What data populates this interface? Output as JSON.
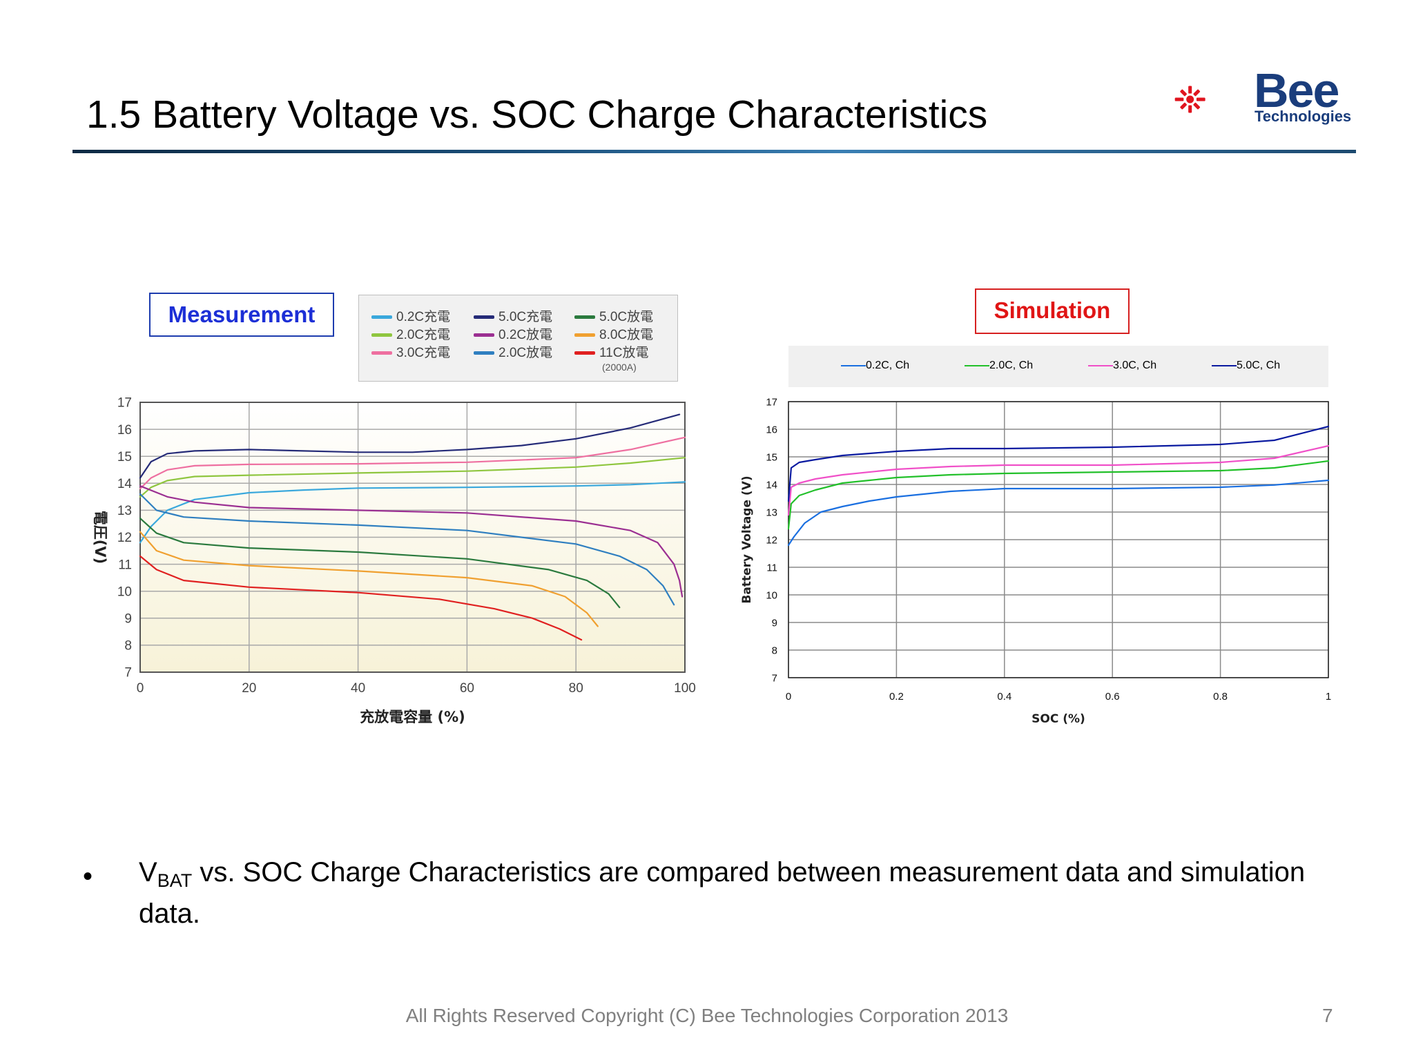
{
  "slide": {
    "title": "1.5 Battery Voltage vs. SOC Charge Characteristics",
    "logo_brand": "Bee",
    "logo_sub": "Technologies",
    "bullet_main": "V",
    "bullet_sub": "BAT",
    "bullet_rest": " vs. SOC Charge Characteristics are compared between measurement data and simulation data.",
    "footer": "All Rights Reserved Copyright (C) Bee Technologies Corporation 2013",
    "page_number": "7"
  },
  "colors": {
    "accent_blue": "#1c2fd6",
    "accent_red": "#e01515",
    "logo_red": "#e0141e",
    "logo_navy": "#1a3d7c"
  },
  "chart_data": [
    {
      "type": "line",
      "panel_label": "Measurement",
      "xlabel": "充放電容量 (%)",
      "ylabel": "電圧(V)",
      "xlim": [
        0,
        100
      ],
      "ylim": [
        7,
        17
      ],
      "xticks": [
        "0",
        "20",
        "40",
        "60",
        "80",
        "100"
      ],
      "yticks": [
        "7",
        "8",
        "9",
        "10",
        "11",
        "12",
        "13",
        "14",
        "15",
        "16",
        "17"
      ],
      "grid": true,
      "legend": {
        "placement": "top",
        "note": "(2000A)"
      },
      "series": [
        {
          "name": "0.2C充電",
          "color": "#3aa8dc",
          "points": [
            [
              0,
              11.8
            ],
            [
              2,
              12.4
            ],
            [
              5,
              13.0
            ],
            [
              10,
              13.4
            ],
            [
              20,
              13.65
            ],
            [
              30,
              13.75
            ],
            [
              40,
              13.82
            ],
            [
              60,
              13.85
            ],
            [
              80,
              13.9
            ],
            [
              90,
              13.95
            ],
            [
              100,
              14.05
            ]
          ]
        },
        {
          "name": "2.0C充電",
          "color": "#8fc63f",
          "points": [
            [
              0,
              13.5
            ],
            [
              2,
              13.85
            ],
            [
              5,
              14.1
            ],
            [
              10,
              14.25
            ],
            [
              20,
              14.3
            ],
            [
              40,
              14.38
            ],
            [
              60,
              14.45
            ],
            [
              80,
              14.6
            ],
            [
              90,
              14.75
            ],
            [
              100,
              14.95
            ]
          ]
        },
        {
          "name": "3.0C充電",
          "color": "#ee6fa0",
          "points": [
            [
              0,
              13.8
            ],
            [
              2,
              14.2
            ],
            [
              5,
              14.5
            ],
            [
              10,
              14.65
            ],
            [
              20,
              14.7
            ],
            [
              40,
              14.72
            ],
            [
              60,
              14.78
            ],
            [
              80,
              14.95
            ],
            [
              90,
              15.25
            ],
            [
              100,
              15.7
            ]
          ]
        },
        {
          "name": "5.0C充電",
          "color": "#252b78",
          "points": [
            [
              0,
              14.2
            ],
            [
              2,
              14.8
            ],
            [
              5,
              15.1
            ],
            [
              10,
              15.2
            ],
            [
              20,
              15.25
            ],
            [
              30,
              15.2
            ],
            [
              40,
              15.15
            ],
            [
              50,
              15.15
            ],
            [
              60,
              15.25
            ],
            [
              70,
              15.4
            ],
            [
              80,
              15.65
            ],
            [
              90,
              16.05
            ],
            [
              99,
              16.55
            ]
          ]
        },
        {
          "name": "0.2C放電",
          "color": "#9b2f92",
          "points": [
            [
              0,
              13.9
            ],
            [
              5,
              13.5
            ],
            [
              10,
              13.3
            ],
            [
              20,
              13.1
            ],
            [
              40,
              13.0
            ],
            [
              60,
              12.9
            ],
            [
              80,
              12.6
            ],
            [
              90,
              12.25
            ],
            [
              95,
              11.8
            ],
            [
              98,
              11.0
            ],
            [
              99,
              10.4
            ],
            [
              99.5,
              9.8
            ]
          ]
        },
        {
          "name": "2.0C放電",
          "color": "#2f7fc0",
          "points": [
            [
              0,
              13.6
            ],
            [
              3,
              13.0
            ],
            [
              8,
              12.75
            ],
            [
              20,
              12.6
            ],
            [
              40,
              12.45
            ],
            [
              60,
              12.25
            ],
            [
              80,
              11.75
            ],
            [
              88,
              11.3
            ],
            [
              93,
              10.8
            ],
            [
              96,
              10.2
            ],
            [
              98,
              9.5
            ]
          ]
        },
        {
          "name": "5.0C放電",
          "color": "#2b7a3e",
          "points": [
            [
              0,
              12.7
            ],
            [
              3,
              12.15
            ],
            [
              8,
              11.8
            ],
            [
              20,
              11.6
            ],
            [
              40,
              11.45
            ],
            [
              60,
              11.2
            ],
            [
              75,
              10.8
            ],
            [
              82,
              10.4
            ],
            [
              86,
              9.9
            ],
            [
              88,
              9.4
            ]
          ]
        },
        {
          "name": "8.0C放電",
          "color": "#f0a030",
          "points": [
            [
              0,
              12.2
            ],
            [
              3,
              11.5
            ],
            [
              8,
              11.15
            ],
            [
              20,
              10.95
            ],
            [
              40,
              10.75
            ],
            [
              60,
              10.5
            ],
            [
              72,
              10.2
            ],
            [
              78,
              9.8
            ],
            [
              82,
              9.2
            ],
            [
              84,
              8.7
            ]
          ]
        },
        {
          "name": "11C放電",
          "color": "#e02020",
          "points": [
            [
              0,
              11.3
            ],
            [
              3,
              10.8
            ],
            [
              8,
              10.4
            ],
            [
              20,
              10.15
            ],
            [
              40,
              9.95
            ],
            [
              55,
              9.7
            ],
            [
              65,
              9.35
            ],
            [
              72,
              9.0
            ],
            [
              77,
              8.6
            ],
            [
              81,
              8.2
            ]
          ]
        }
      ]
    },
    {
      "type": "line",
      "panel_label": "Simulation",
      "xlabel": "SOC (%)",
      "ylabel": "Battery Voltage (V)",
      "xlim": [
        0,
        1
      ],
      "ylim": [
        7,
        17
      ],
      "xticks": [
        "0",
        "0.2",
        "0.4",
        "0.6",
        "0.8",
        "1"
      ],
      "yticks": [
        "7",
        "8",
        "9",
        "10",
        "11",
        "12",
        "13",
        "14",
        "15",
        "16",
        "17"
      ],
      "grid": true,
      "legend": {
        "placement": "top"
      },
      "series": [
        {
          "name": "0.2C, Ch",
          "color": "#1a6fe0",
          "points": [
            [
              0,
              11.8
            ],
            [
              0.01,
              12.1
            ],
            [
              0.03,
              12.6
            ],
            [
              0.06,
              13.0
            ],
            [
              0.1,
              13.2
            ],
            [
              0.15,
              13.4
            ],
            [
              0.2,
              13.55
            ],
            [
              0.3,
              13.75
            ],
            [
              0.4,
              13.85
            ],
            [
              0.6,
              13.85
            ],
            [
              0.8,
              13.9
            ],
            [
              0.9,
              13.98
            ],
            [
              1.0,
              14.15
            ]
          ]
        },
        {
          "name": "2.0C, Ch",
          "color": "#22c02a",
          "points": [
            [
              0,
              12.4
            ],
            [
              0.005,
              13.3
            ],
            [
              0.02,
              13.6
            ],
            [
              0.05,
              13.8
            ],
            [
              0.1,
              14.05
            ],
            [
              0.15,
              14.15
            ],
            [
              0.2,
              14.25
            ],
            [
              0.3,
              14.35
            ],
            [
              0.4,
              14.4
            ],
            [
              0.6,
              14.45
            ],
            [
              0.8,
              14.5
            ],
            [
              0.9,
              14.6
            ],
            [
              1.0,
              14.85
            ]
          ]
        },
        {
          "name": "3.0C, Ch",
          "color": "#f050c8",
          "points": [
            [
              0,
              12.9
            ],
            [
              0.005,
              13.9
            ],
            [
              0.02,
              14.05
            ],
            [
              0.05,
              14.2
            ],
            [
              0.1,
              14.35
            ],
            [
              0.2,
              14.55
            ],
            [
              0.3,
              14.65
            ],
            [
              0.4,
              14.7
            ],
            [
              0.6,
              14.7
            ],
            [
              0.8,
              14.8
            ],
            [
              0.9,
              14.95
            ],
            [
              1.0,
              15.4
            ]
          ]
        },
        {
          "name": "5.0C, Ch",
          "color": "#0a1aa0",
          "points": [
            [
              0,
              13.4
            ],
            [
              0.005,
              14.6
            ],
            [
              0.02,
              14.8
            ],
            [
              0.05,
              14.9
            ],
            [
              0.1,
              15.05
            ],
            [
              0.2,
              15.2
            ],
            [
              0.3,
              15.3
            ],
            [
              0.4,
              15.3
            ],
            [
              0.6,
              15.35
            ],
            [
              0.8,
              15.45
            ],
            [
              0.9,
              15.6
            ],
            [
              1.0,
              16.1
            ]
          ]
        }
      ]
    }
  ]
}
